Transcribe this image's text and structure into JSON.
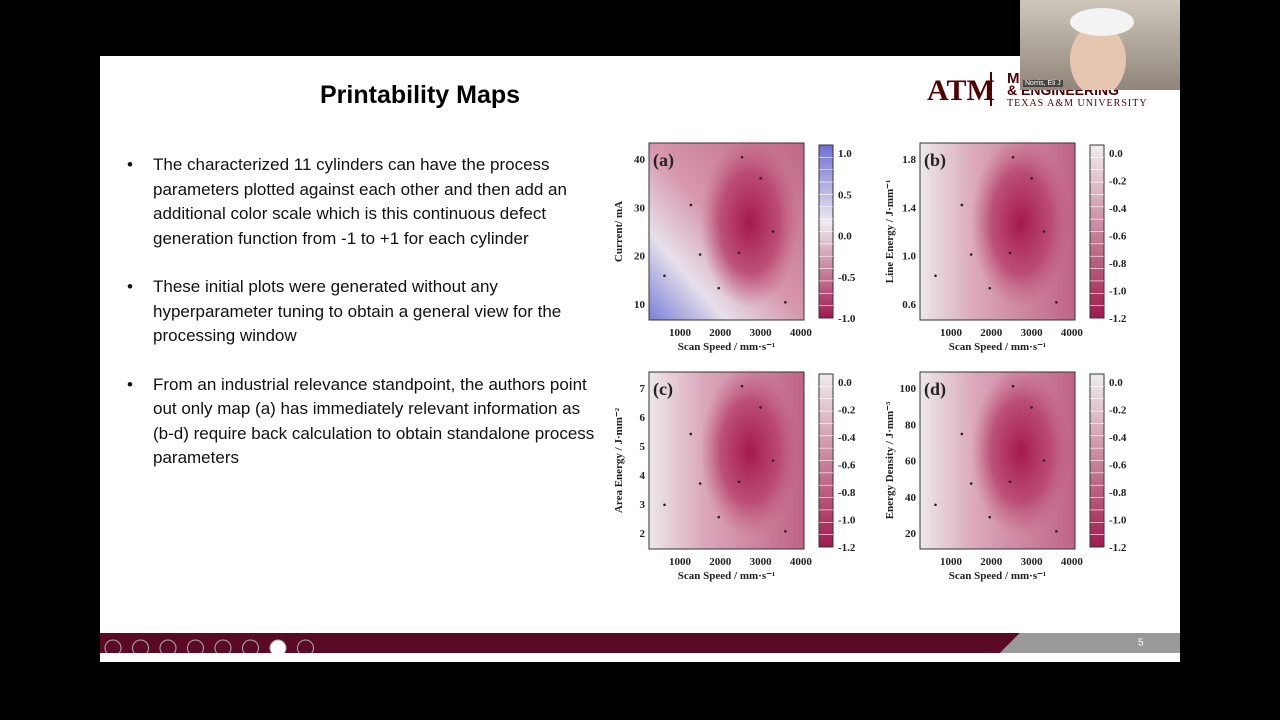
{
  "slide": {
    "title": "Printability Maps",
    "bullets": [
      "The characterized 11 cylinders can have the process parameters plotted against each other and then add an additional color scale which is this continuous defect generation function from -1 to +1 for each cylinder",
      "These initial plots were generated without any hyperparameter tuning to obtain a general view for the processing window",
      "From an industrial relevance standpoint, the authors point out only map (a) has immediately relevant information as (b-d) require back calculation to obtain standalone process parameters"
    ],
    "page_number": "5"
  },
  "logo": {
    "mark": "ATM",
    "line1": "M",
    "line2": "& ENGINEERING",
    "line3": "TEXAS A&M UNIVERSITY"
  },
  "webcam": {
    "name": "Norris, Eli J"
  },
  "plots": [
    {
      "label": "(a)",
      "x_label": "Scan Speed / mm·s⁻¹",
      "y_label": "Current/ mA",
      "xticks": [
        "1000",
        "2000",
        "3000",
        "4000"
      ],
      "yticks": [
        "10",
        "20",
        "30",
        "40"
      ],
      "colorbar": [
        "1.0",
        "0.5",
        "0.0",
        "-0.5",
        "-1.0"
      ]
    },
    {
      "label": "(b)",
      "x_label": "Scan Speed / mm·s⁻¹",
      "y_label": "Line Energy / J·mm⁻¹",
      "xticks": [
        "1000",
        "2000",
        "3000",
        "4000"
      ],
      "yticks": [
        "0.6",
        "1.0",
        "1.4",
        "1.8"
      ],
      "colorbar": [
        "0.0",
        "-0.2",
        "-0.4",
        "-0.6",
        "-0.8",
        "-1.0",
        "-1.2"
      ]
    },
    {
      "label": "(c)",
      "x_label": "Scan Speed / mm·s⁻¹",
      "y_label": "Area Energy / J·mm⁻²",
      "xticks": [
        "1000",
        "2000",
        "3000",
        "4000"
      ],
      "yticks": [
        "2",
        "3",
        "4",
        "5",
        "6",
        "7"
      ],
      "colorbar": [
        "0.0",
        "-0.2",
        "-0.4",
        "-0.6",
        "-0.8",
        "-1.0",
        "-1.2"
      ]
    },
    {
      "label": "(d)",
      "x_label": "Scan Speed / mm·s⁻¹",
      "y_label": "Energy Density / J·mm⁻³",
      "xticks": [
        "1000",
        "2000",
        "3000",
        "4000"
      ],
      "yticks": [
        "20",
        "40",
        "60",
        "80",
        "100"
      ],
      "colorbar": [
        "0.0",
        "-0.2",
        "-0.4",
        "-0.6",
        "-0.8",
        "-1.0",
        "-1.2"
      ]
    }
  ]
}
